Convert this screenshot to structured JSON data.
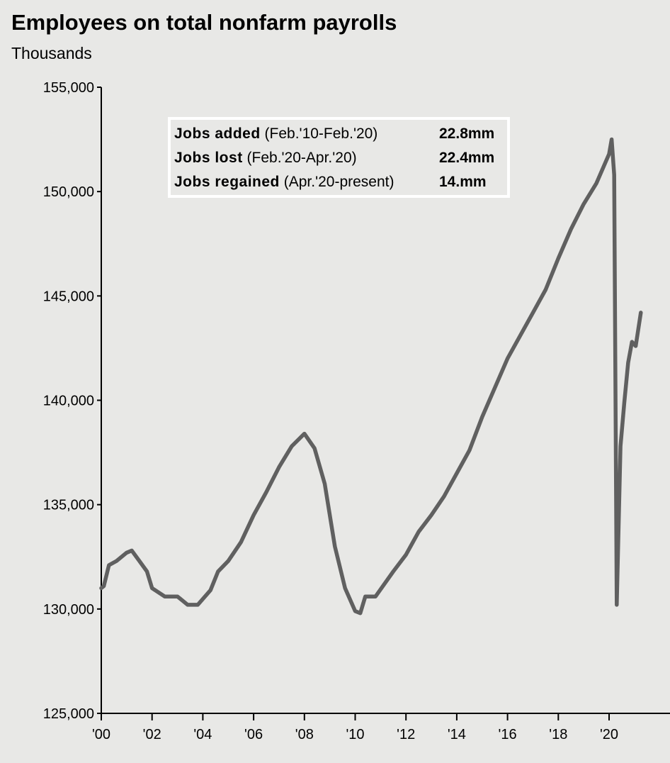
{
  "chart_data": {
    "type": "line",
    "title": "Employees on total nonfarm payrolls",
    "ylabel": "Thousands",
    "xlabel": "",
    "ylim": [
      125000,
      155000
    ],
    "xlim": [
      2000,
      2022.4
    ],
    "grid": false,
    "yticks": [
      125000,
      130000,
      135000,
      140000,
      145000,
      150000,
      155000
    ],
    "ytick_labels": [
      "125,000",
      "130,000",
      "135,000",
      "140,000",
      "145,000",
      "150,000",
      "155,000"
    ],
    "xticks": [
      2000,
      2002,
      2004,
      2006,
      2008,
      2010,
      2012,
      2014,
      2016,
      2018,
      2020
    ],
    "xtick_labels": [
      "'00",
      "'02",
      "'04",
      "'06",
      "'08",
      "'10",
      "'12",
      "'14",
      "'16",
      "'18",
      "'20"
    ],
    "series": [
      {
        "name": "Total nonfarm payrolls",
        "color": "#606060",
        "x": [
          2000.0,
          2000.1,
          2000.3,
          2000.6,
          2001.0,
          2001.2,
          2001.5,
          2001.8,
          2002.0,
          2002.5,
          2003.0,
          2003.4,
          2003.8,
          2004.3,
          2004.6,
          2005.0,
          2005.5,
          2006.0,
          2006.5,
          2007.0,
          2007.5,
          2008.0,
          2008.4,
          2008.8,
          2009.2,
          2009.6,
          2010.0,
          2010.2,
          2010.4,
          2010.8,
          2011.5,
          2012.0,
          2012.5,
          2013.0,
          2013.5,
          2014.0,
          2014.5,
          2015.0,
          2015.5,
          2016.0,
          2016.5,
          2017.0,
          2017.5,
          2018.0,
          2018.5,
          2019.0,
          2019.5,
          2020.0,
          2020.1,
          2020.2,
          2020.3,
          2020.45,
          2020.6,
          2020.75,
          2020.9,
          2021.05,
          2021.25
        ],
        "y": [
          131000,
          131100,
          132100,
          132300,
          132700,
          132800,
          132300,
          131800,
          131000,
          130600,
          130600,
          130200,
          130200,
          130900,
          131800,
          132300,
          133200,
          134500,
          135600,
          136800,
          137800,
          138400,
          137700,
          136000,
          133000,
          131000,
          129900,
          129800,
          130600,
          130600,
          131800,
          132600,
          133700,
          134500,
          135400,
          136500,
          137600,
          139200,
          140600,
          142000,
          143100,
          144200,
          145300,
          146800,
          148200,
          149400,
          150400,
          151800,
          152500,
          150800,
          130200,
          137800,
          139900,
          141800,
          142800,
          142600,
          144200
        ]
      }
    ],
    "annotations": {
      "rows": [
        {
          "label": "Jobs added",
          "period": "(Feb.'10-Feb.'20)",
          "value": "22.8mm"
        },
        {
          "label": "Jobs lost",
          "period": "(Feb.'20-Apr.'20)",
          "value": "22.4mm"
        },
        {
          "label": "Jobs regained",
          "period": "(Apr.'20-present)",
          "value": "14.mm"
        }
      ]
    }
  }
}
